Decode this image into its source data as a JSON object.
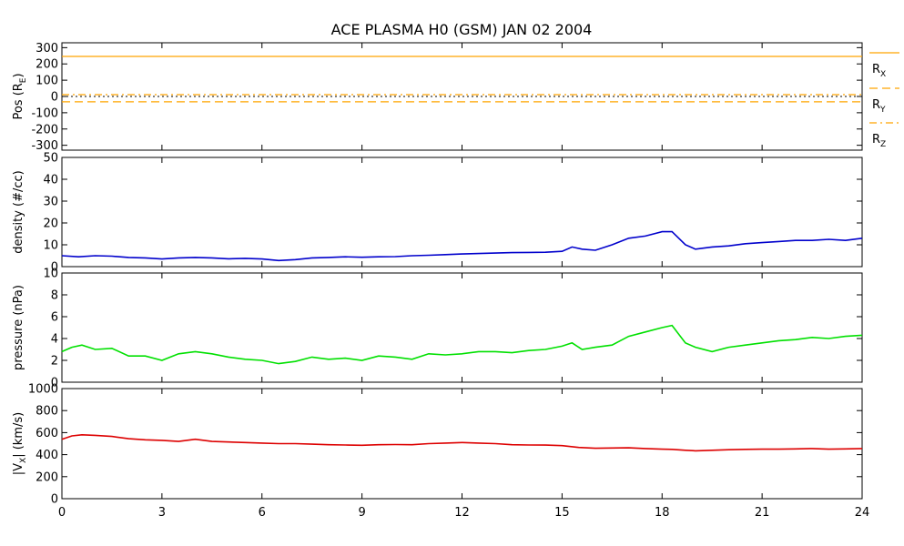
{
  "title": "ACE PLASMA H0 (GSM)   JAN 02 2004",
  "colors": {
    "axis": "#000000",
    "position": "#ffa500",
    "density": "#0000cc",
    "pressure": "#00e000",
    "velocity": "#dd0000",
    "zero_line": "#000000"
  },
  "chart_data": [
    {
      "type": "line",
      "ylabel_main": "Pos (R",
      "ylabel_sub": "E",
      "ylabel_tail": ")",
      "ylim": [
        -330,
        330
      ],
      "yticks": [
        300,
        200,
        100,
        0,
        -100,
        -200,
        -300
      ],
      "ytick_labels": [
        "300",
        "200",
        "100",
        "0",
        "-100",
        "-200",
        "-300"
      ],
      "xlim": [
        0,
        24
      ],
      "legend_placement": "right",
      "series": [
        {
          "name": "R",
          "sub": "X",
          "style": "solid",
          "value": 246
        },
        {
          "name": "R",
          "sub": "Y",
          "style": "dashed",
          "value": -33
        },
        {
          "name": "R",
          "sub": "Z",
          "style": "dashdot",
          "value": 11
        }
      ]
    },
    {
      "type": "line",
      "ylabel": "density (#/cc)",
      "ylim": [
        0,
        50
      ],
      "yticks": [
        0,
        10,
        20,
        30,
        40,
        50
      ],
      "ytick_labels": [
        "0",
        "10",
        "20",
        "30",
        "40",
        "50"
      ],
      "xlim": [
        0,
        24
      ],
      "x": [
        0,
        0.5,
        1,
        1.5,
        2,
        2.5,
        3,
        3.5,
        4,
        4.5,
        5,
        5.5,
        6,
        6.5,
        7,
        7.5,
        8,
        8.5,
        9,
        9.5,
        10,
        10.5,
        11,
        11.5,
        12,
        12.5,
        13,
        13.5,
        14,
        14.5,
        15,
        15.3,
        15.6,
        16,
        16.5,
        17,
        17.5,
        18,
        18.3,
        18.7,
        19,
        19.5,
        20,
        20.5,
        21,
        21.5,
        22,
        22.5,
        23,
        23.5,
        24
      ],
      "values": [
        5,
        4.5,
        5,
        4.8,
        4.2,
        4,
        3.5,
        4,
        4.2,
        4,
        3.6,
        3.8,
        3.5,
        2.8,
        3.2,
        4,
        4.2,
        4.5,
        4.3,
        4.5,
        4.6,
        5,
        5.2,
        5.5,
        5.8,
        6,
        6.2,
        6.4,
        6.5,
        6.6,
        7,
        9,
        8,
        7.5,
        10,
        13,
        14,
        16,
        16,
        10,
        8,
        9,
        9.5,
        10.5,
        11,
        11.5,
        12,
        12,
        12.5,
        12,
        13
      ]
    },
    {
      "type": "line",
      "ylabel": "pressure (nPa)",
      "ylim": [
        0,
        10
      ],
      "yticks": [
        0,
        2,
        4,
        6,
        8,
        10
      ],
      "ytick_labels": [
        "0",
        "2",
        "4",
        "6",
        "8",
        "10"
      ],
      "xlim": [
        0,
        24
      ],
      "x": [
        0,
        0.3,
        0.6,
        1,
        1.5,
        2,
        2.5,
        3,
        3.5,
        4,
        4.5,
        5,
        5.5,
        6,
        6.5,
        7,
        7.5,
        8,
        8.5,
        9,
        9.5,
        10,
        10.5,
        11,
        11.5,
        12,
        12.5,
        13,
        13.5,
        14,
        14.5,
        15,
        15.3,
        15.6,
        16,
        16.5,
        17,
        17.5,
        18,
        18.3,
        18.7,
        19,
        19.5,
        20,
        20.5,
        21,
        21.5,
        22,
        22.5,
        23,
        23.5,
        24
      ],
      "values": [
        2.8,
        3.2,
        3.4,
        3.0,
        3.1,
        2.4,
        2.4,
        2.0,
        2.6,
        2.8,
        2.6,
        2.3,
        2.1,
        2.0,
        1.7,
        1.9,
        2.3,
        2.1,
        2.2,
        2.0,
        2.4,
        2.3,
        2.1,
        2.6,
        2.5,
        2.6,
        2.8,
        2.8,
        2.7,
        2.9,
        3.0,
        3.3,
        3.6,
        3.0,
        3.2,
        3.4,
        4.2,
        4.6,
        5.0,
        5.2,
        3.6,
        3.2,
        2.8,
        3.2,
        3.4,
        3.6,
        3.8,
        3.9,
        4.1,
        4.0,
        4.2,
        4.3
      ]
    },
    {
      "type": "line",
      "ylabel_main": "|V",
      "ylabel_sub": "X",
      "ylabel_tail": "| (km/s)",
      "ylim": [
        0,
        1000
      ],
      "yticks": [
        0,
        200,
        400,
        600,
        800,
        1000
      ],
      "ytick_labels": [
        "0",
        "200",
        "400",
        "600",
        "800",
        "1000"
      ],
      "xlim": [
        0,
        24
      ],
      "x": [
        0,
        0.3,
        0.6,
        1,
        1.5,
        2,
        2.5,
        3,
        3.5,
        4,
        4.5,
        5,
        5.5,
        6,
        6.5,
        7,
        7.5,
        8,
        8.5,
        9,
        9.5,
        10,
        10.5,
        11,
        11.5,
        12,
        12.5,
        13,
        13.5,
        14,
        14.5,
        15,
        15.5,
        16,
        16.5,
        17,
        17.5,
        18,
        18.3,
        18.7,
        19,
        19.5,
        20,
        20.5,
        21,
        21.5,
        22,
        22.5,
        23,
        23.5,
        24
      ],
      "values": [
        540,
        570,
        580,
        575,
        565,
        545,
        535,
        530,
        520,
        540,
        520,
        515,
        510,
        505,
        500,
        500,
        495,
        490,
        488,
        485,
        490,
        492,
        490,
        500,
        505,
        510,
        505,
        500,
        490,
        488,
        487,
        482,
        465,
        458,
        460,
        462,
        455,
        450,
        448,
        440,
        435,
        440,
        445,
        448,
        450,
        450,
        452,
        455,
        450,
        452,
        455
      ]
    }
  ],
  "xaxis": {
    "ticks": [
      0,
      3,
      6,
      9,
      12,
      15,
      18,
      21,
      24
    ],
    "tick_labels": [
      "0",
      "3",
      "6",
      "9",
      "12",
      "15",
      "18",
      "21",
      "24"
    ]
  }
}
